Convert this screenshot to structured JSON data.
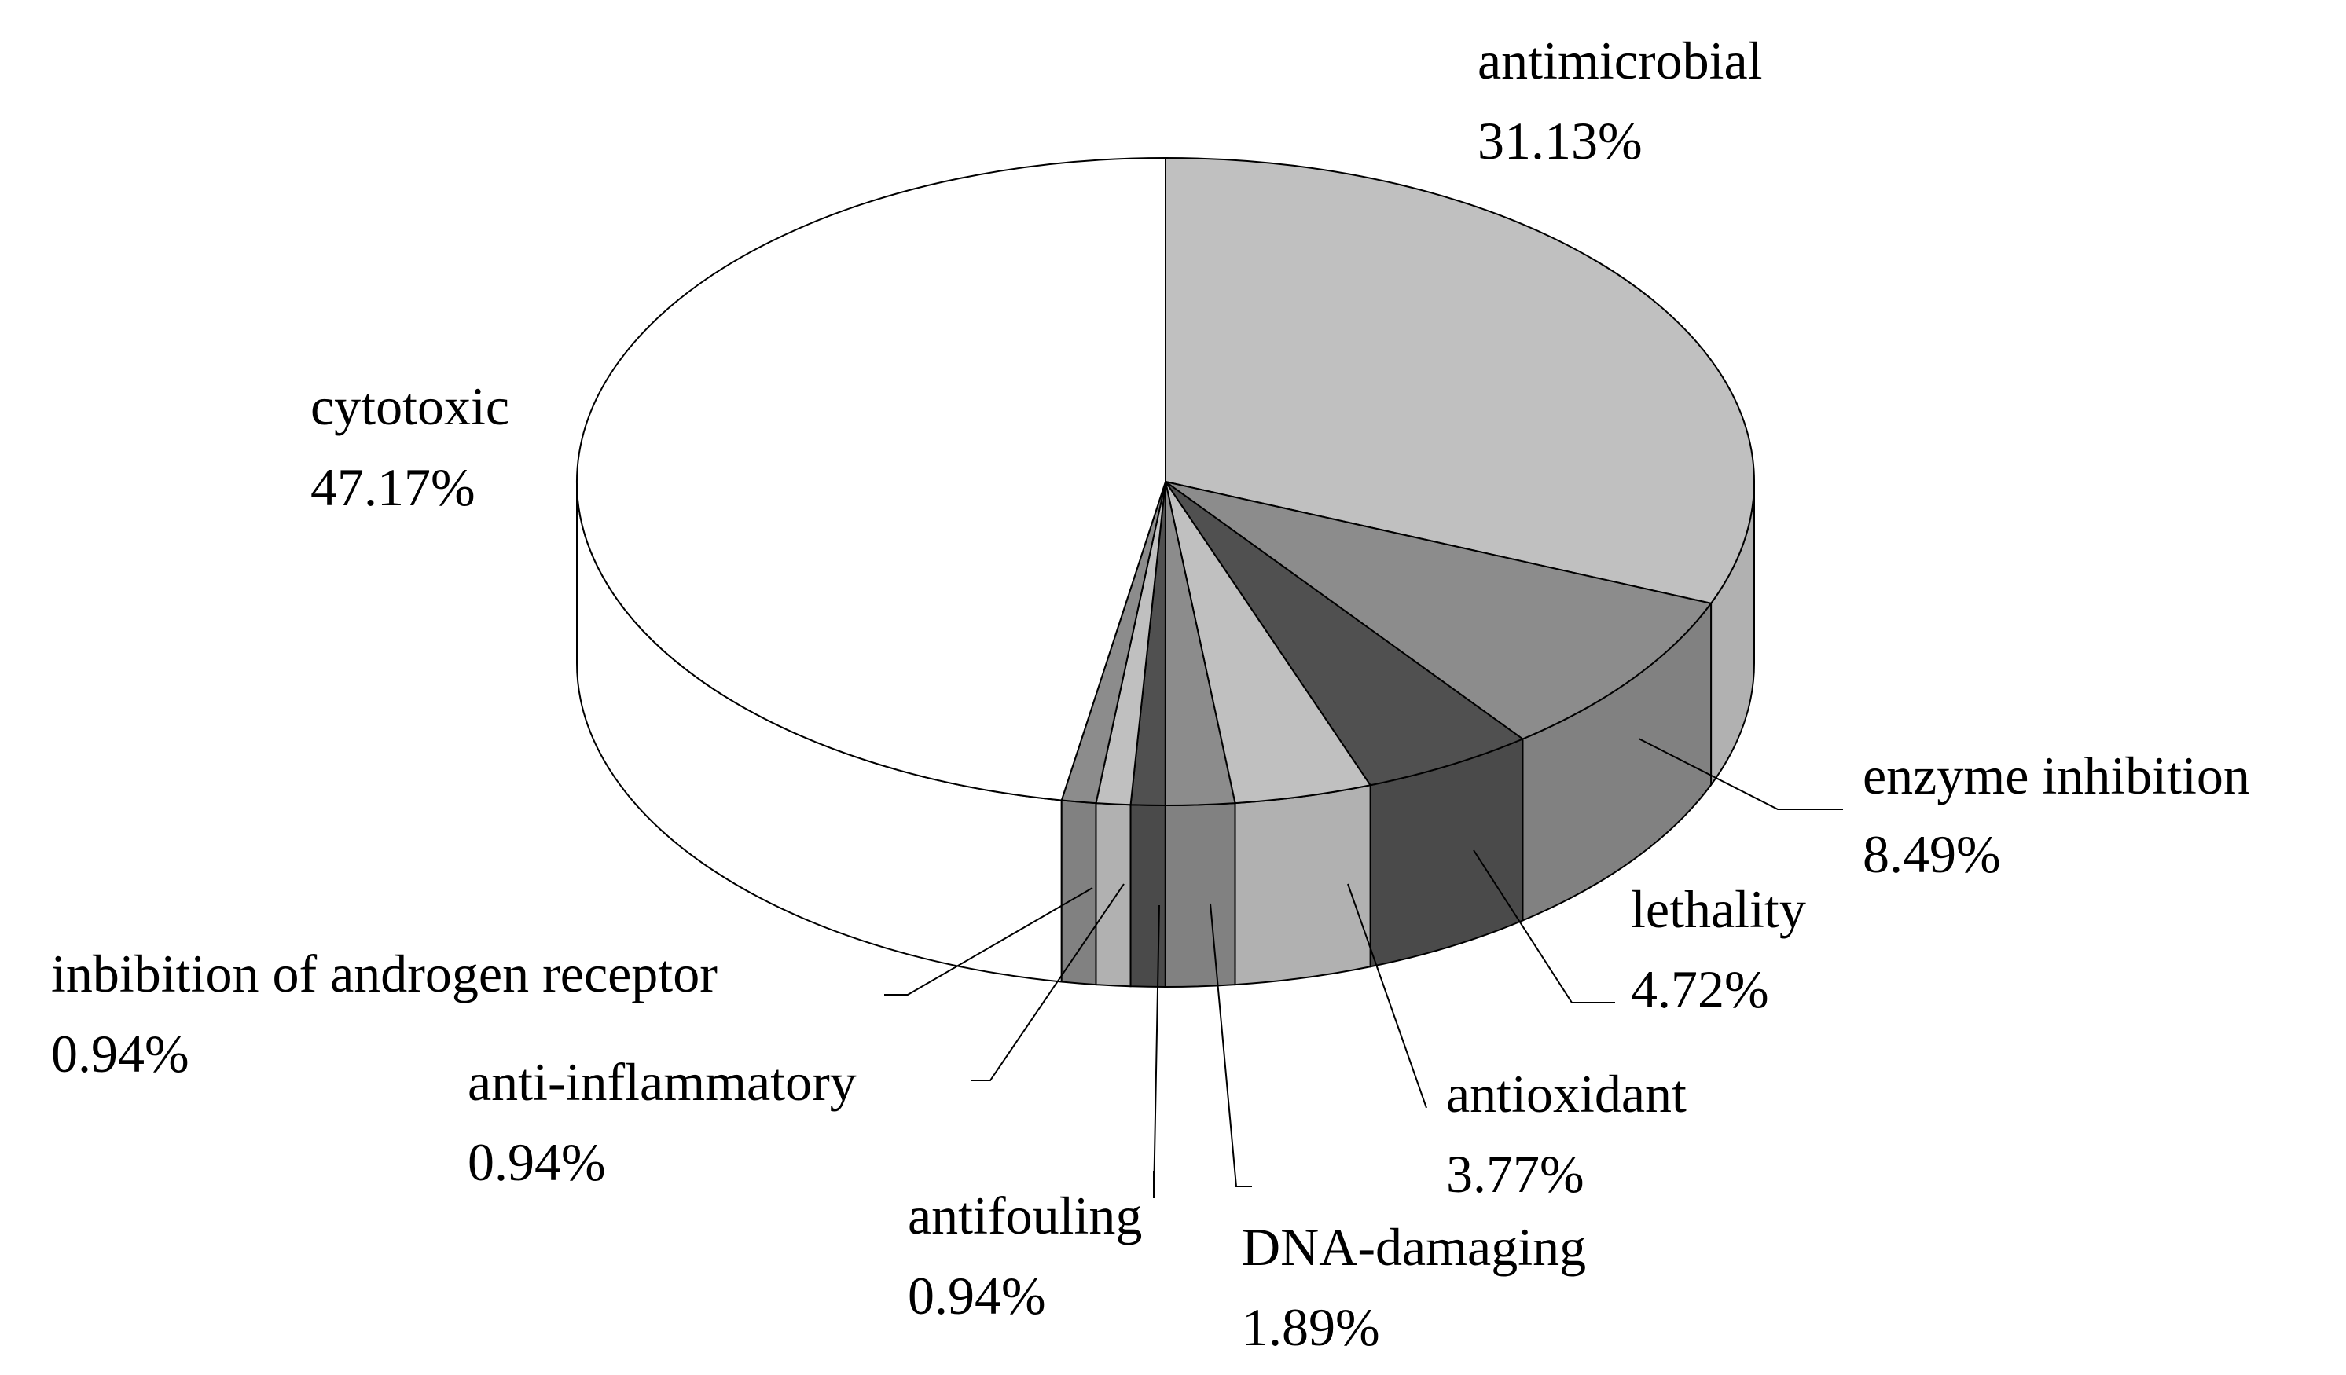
{
  "chart_data": {
    "type": "pie",
    "style": "3d",
    "slices": [
      {
        "label": "antimicrobial",
        "pct_text": "31.13%",
        "value": 31.13,
        "color": "#c0c0c0"
      },
      {
        "label": "enzyme inhibition",
        "pct_text": "8.49%",
        "value": 8.49,
        "color": "#8c8c8c"
      },
      {
        "label": "lethality",
        "pct_text": "4.72%",
        "value": 4.72,
        "color": "#505050"
      },
      {
        "label": "antioxidant",
        "pct_text": "3.77%",
        "value": 3.77,
        "color": "#c0c0c0"
      },
      {
        "label": "DNA-damaging",
        "pct_text": "1.89%",
        "value": 1.89,
        "color": "#8c8c8c"
      },
      {
        "label": "antifouling",
        "pct_text": "0.94%",
        "value": 0.94,
        "color": "#505050"
      },
      {
        "label": "anti-inflammatory",
        "pct_text": "0.94%",
        "value": 0.94,
        "color": "#c0c0c0"
      },
      {
        "label": "inbibition of androgen receptor",
        "pct_text": "0.94%",
        "value": 0.94,
        "color": "#8c8c8c"
      },
      {
        "label": "cytotoxic",
        "pct_text": "47.17%",
        "value": 47.17,
        "color": "#ffffff"
      }
    ]
  }
}
